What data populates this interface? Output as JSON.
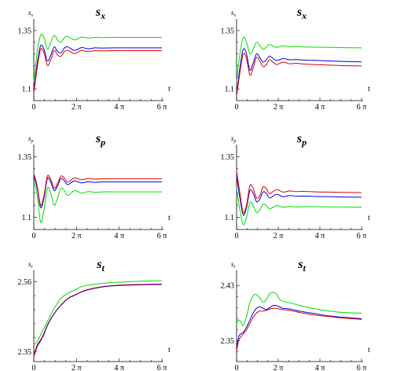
{
  "chart_data": [
    {
      "type": "line",
      "title": "s_x",
      "title_main": "s",
      "title_sub": "x",
      "ylabel_main": "s",
      "ylabel_sub": "x",
      "xlabel": "t",
      "xlim": [
        0,
        18.85
      ],
      "ylim": [
        1.05,
        1.38
      ],
      "x_ticks": [
        {
          "v": 0,
          "label": "0"
        },
        {
          "v": 6.2832,
          "label": "2 π"
        },
        {
          "v": 12.566,
          "label": "4 π"
        },
        {
          "v": 18.85,
          "label": "6 π"
        }
      ],
      "y_ticks": [
        {
          "v": 1.1,
          "label": "1.1"
        },
        {
          "v": 1.35,
          "label": "1.35"
        }
      ],
      "series": [
        {
          "color": "#00dd00",
          "x": [
            0,
            0.5,
            1,
            1.5,
            2,
            2.5,
            3,
            3.5,
            4,
            4.5,
            5,
            6,
            7,
            8,
            9,
            10,
            12,
            14,
            16,
            18.85
          ],
          "y": [
            1.13,
            1.26,
            1.33,
            1.32,
            1.27,
            1.3,
            1.33,
            1.31,
            1.3,
            1.32,
            1.325,
            1.31,
            1.322,
            1.318,
            1.321,
            1.32,
            1.321,
            1.321,
            1.321,
            1.321
          ]
        },
        {
          "color": "#0000dd",
          "x": [
            0,
            0.5,
            1,
            1.5,
            2,
            2.5,
            3,
            3.5,
            4,
            4.5,
            5,
            6,
            7,
            8,
            9,
            10,
            12,
            14,
            16,
            18.85
          ],
          "y": [
            1.09,
            1.21,
            1.285,
            1.27,
            1.22,
            1.245,
            1.28,
            1.26,
            1.255,
            1.275,
            1.28,
            1.265,
            1.277,
            1.272,
            1.276,
            1.275,
            1.276,
            1.276,
            1.276,
            1.276
          ]
        },
        {
          "color": "#dd0000",
          "x": [
            0,
            0.5,
            1,
            1.5,
            2,
            2.5,
            3,
            3.5,
            4,
            4.5,
            5,
            6,
            7,
            8,
            9,
            10,
            12,
            14,
            16,
            18.85
          ],
          "y": [
            1.08,
            1.19,
            1.27,
            1.255,
            1.2,
            1.225,
            1.265,
            1.245,
            1.24,
            1.26,
            1.265,
            1.252,
            1.265,
            1.26,
            1.264,
            1.263,
            1.264,
            1.264,
            1.264,
            1.264
          ]
        }
      ]
    },
    {
      "type": "line",
      "title": "s_x",
      "title_main": "s",
      "title_sub": "x",
      "ylabel_main": "s",
      "ylabel_sub": "x",
      "xlabel": "t",
      "xlim": [
        0,
        18.85
      ],
      "ylim": [
        1.05,
        1.38
      ],
      "x_ticks": [
        {
          "v": 0,
          "label": "0"
        },
        {
          "v": 6.2832,
          "label": "2 π"
        },
        {
          "v": 12.566,
          "label": "4 π"
        },
        {
          "v": 18.85,
          "label": "6 π"
        }
      ],
      "y_ticks": [
        {
          "v": 1.1,
          "label": "1.1"
        },
        {
          "v": 1.35,
          "label": "1.35"
        }
      ],
      "series": [
        {
          "color": "#00dd00",
          "x": [
            0,
            0.5,
            1,
            1.5,
            2,
            2.5,
            3,
            3.5,
            4,
            4.5,
            5,
            6,
            7,
            8,
            9,
            10,
            12,
            14,
            16,
            18.85
          ],
          "y": [
            1.13,
            1.25,
            1.32,
            1.3,
            1.25,
            1.27,
            1.3,
            1.285,
            1.27,
            1.28,
            1.29,
            1.278,
            1.285,
            1.28,
            1.282,
            1.28,
            1.279,
            1.278,
            1.277,
            1.276
          ]
        },
        {
          "color": "#0000dd",
          "x": [
            0,
            0.5,
            1,
            1.5,
            2,
            2.5,
            3,
            3.5,
            4,
            4.5,
            5,
            6,
            7,
            8,
            9,
            10,
            12,
            14,
            16,
            18.85
          ],
          "y": [
            1.08,
            1.19,
            1.27,
            1.25,
            1.18,
            1.21,
            1.25,
            1.235,
            1.215,
            1.225,
            1.24,
            1.222,
            1.23,
            1.225,
            1.226,
            1.224,
            1.222,
            1.22,
            1.218,
            1.216
          ]
        },
        {
          "color": "#dd0000",
          "x": [
            0,
            0.5,
            1,
            1.5,
            2,
            2.5,
            3,
            3.5,
            4,
            4.5,
            5,
            6,
            7,
            8,
            9,
            10,
            12,
            14,
            16,
            18.85
          ],
          "y": [
            1.07,
            1.17,
            1.25,
            1.23,
            1.16,
            1.19,
            1.235,
            1.22,
            1.195,
            1.205,
            1.225,
            1.205,
            1.215,
            1.208,
            1.21,
            1.207,
            1.204,
            1.202,
            1.2,
            1.198
          ]
        }
      ]
    },
    {
      "type": "line",
      "title": "s_p",
      "title_main": "s",
      "title_sub": "p",
      "ylabel_main": "s",
      "ylabel_sub": "p",
      "xlabel": "t",
      "xlim": [
        0,
        18.85
      ],
      "ylim": [
        1.05,
        1.38
      ],
      "x_ticks": [
        {
          "v": 0,
          "label": "0"
        },
        {
          "v": 6.2832,
          "label": "2 π"
        },
        {
          "v": 12.566,
          "label": "4 π"
        },
        {
          "v": 18.85,
          "label": "6 π"
        }
      ],
      "y_ticks": [
        {
          "v": 1.1,
          "label": "1.1"
        },
        {
          "v": 1.35,
          "label": "1.35"
        }
      ],
      "series": [
        {
          "color": "#00dd00",
          "x": [
            0,
            0.5,
            1,
            1.5,
            2,
            2.5,
            3,
            3.5,
            4,
            4.5,
            5,
            6,
            7,
            8,
            9,
            10,
            12,
            14,
            16,
            18.85
          ],
          "y": [
            1.25,
            1.19,
            1.08,
            1.13,
            1.22,
            1.2,
            1.15,
            1.18,
            1.22,
            1.21,
            1.19,
            1.21,
            1.2,
            1.206,
            1.203,
            1.205,
            1.205,
            1.205,
            1.205,
            1.205
          ]
        },
        {
          "color": "#0000dd",
          "x": [
            0,
            0.5,
            1,
            1.5,
            2,
            2.5,
            3,
            3.5,
            4,
            4.5,
            5,
            6,
            7,
            8,
            9,
            10,
            12,
            14,
            16,
            18.85
          ],
          "y": [
            1.27,
            1.22,
            1.14,
            1.18,
            1.26,
            1.245,
            1.21,
            1.23,
            1.26,
            1.25,
            1.235,
            1.25,
            1.242,
            1.247,
            1.244,
            1.246,
            1.246,
            1.246,
            1.246,
            1.246
          ]
        },
        {
          "color": "#dd0000",
          "x": [
            0,
            0.5,
            1,
            1.5,
            2,
            2.5,
            3,
            3.5,
            4,
            4.5,
            5,
            6,
            7,
            8,
            9,
            10,
            12,
            14,
            16,
            18.85
          ],
          "y": [
            1.28,
            1.23,
            1.15,
            1.19,
            1.27,
            1.255,
            1.22,
            1.24,
            1.27,
            1.262,
            1.245,
            1.262,
            1.255,
            1.26,
            1.257,
            1.259,
            1.259,
            1.259,
            1.259,
            1.259
          ]
        }
      ]
    },
    {
      "type": "line",
      "title": "s_p",
      "title_main": "s",
      "title_sub": "p",
      "ylabel_main": "s",
      "ylabel_sub": "p",
      "xlabel": "t",
      "xlim": [
        0,
        18.85
      ],
      "ylim": [
        1.05,
        1.38
      ],
      "x_ticks": [
        {
          "v": 0,
          "label": "0"
        },
        {
          "v": 6.2832,
          "label": "2 π"
        },
        {
          "v": 12.566,
          "label": "4 π"
        },
        {
          "v": 18.85,
          "label": "6 π"
        }
      ],
      "y_ticks": [
        {
          "v": 1.1,
          "label": "1.1"
        },
        {
          "v": 1.35,
          "label": "1.35"
        }
      ],
      "series": [
        {
          "color": "#00dd00",
          "x": [
            0,
            0.5,
            1,
            1.5,
            2,
            2.5,
            3,
            3.5,
            4,
            4.5,
            5,
            6,
            7,
            8,
            9,
            10,
            12,
            14,
            16,
            18.85
          ],
          "y": [
            1.22,
            1.13,
            1.07,
            1.1,
            1.16,
            1.15,
            1.12,
            1.13,
            1.155,
            1.148,
            1.135,
            1.148,
            1.142,
            1.145,
            1.143,
            1.144,
            1.144,
            1.143,
            1.143,
            1.142
          ]
        },
        {
          "color": "#0000dd",
          "x": [
            0,
            0.5,
            1,
            1.5,
            2,
            2.5,
            3,
            3.5,
            4,
            4.5,
            5,
            6,
            7,
            8,
            9,
            10,
            12,
            14,
            16,
            18.85
          ],
          "y": [
            1.27,
            1.18,
            1.11,
            1.14,
            1.21,
            1.2,
            1.165,
            1.175,
            1.205,
            1.198,
            1.18,
            1.195,
            1.185,
            1.19,
            1.187,
            1.188,
            1.186,
            1.185,
            1.184,
            1.183
          ]
        },
        {
          "color": "#dd0000",
          "x": [
            0,
            0.5,
            1,
            1.5,
            2,
            2.5,
            3,
            3.5,
            4,
            4.5,
            5,
            6,
            7,
            8,
            9,
            10,
            12,
            14,
            16,
            18.85
          ],
          "y": [
            1.29,
            1.2,
            1.12,
            1.15,
            1.23,
            1.22,
            1.18,
            1.19,
            1.225,
            1.218,
            1.198,
            1.214,
            1.204,
            1.209,
            1.206,
            1.207,
            1.205,
            1.204,
            1.203,
            1.202
          ]
        }
      ]
    },
    {
      "type": "line",
      "title": "s_t",
      "title_main": "s",
      "title_sub": "t",
      "ylabel_main": "s",
      "ylabel_sub": "t",
      "xlabel": "t",
      "xlim": [
        0,
        18.85
      ],
      "ylim": [
        2.32,
        2.58
      ],
      "x_ticks": [
        {
          "v": 0,
          "label": "0"
        },
        {
          "v": 6.2832,
          "label": "2 π"
        },
        {
          "v": 12.566,
          "label": "4 π"
        },
        {
          "v": 18.85,
          "label": "6 π"
        }
      ],
      "y_ticks": [
        {
          "v": 2.35,
          "label": "2.35"
        },
        {
          "v": 2.56,
          "label": "2.56"
        }
      ],
      "series": [
        {
          "color": "#00dd00",
          "x": [
            0,
            0.5,
            1,
            1.5,
            2,
            3,
            4,
            5,
            6,
            7,
            8,
            10,
            12,
            14,
            16,
            18.85
          ],
          "y": [
            2.37,
            2.38,
            2.4,
            2.42,
            2.44,
            2.48,
            2.51,
            2.525,
            2.535,
            2.545,
            2.55,
            2.555,
            2.558,
            2.56,
            2.562,
            2.563
          ]
        },
        {
          "color": "#dd0000",
          "x": [
            0,
            0.5,
            1,
            1.5,
            2,
            3,
            4,
            5,
            6,
            7,
            8,
            10,
            12,
            14,
            16,
            18.85
          ],
          "y": [
            2.34,
            2.37,
            2.385,
            2.405,
            2.43,
            2.465,
            2.49,
            2.51,
            2.52,
            2.53,
            2.537,
            2.545,
            2.549,
            2.551,
            2.552,
            2.553
          ]
        },
        {
          "color": "#4400aa",
          "x": [
            0,
            0.5,
            1,
            1.5,
            2,
            3,
            4,
            5,
            6,
            7,
            8,
            10,
            12,
            14,
            16,
            18.85
          ],
          "y": [
            2.335,
            2.365,
            2.382,
            2.402,
            2.428,
            2.464,
            2.489,
            2.509,
            2.519,
            2.529,
            2.536,
            2.544,
            2.548,
            2.55,
            2.551,
            2.552
          ]
        }
      ]
    },
    {
      "type": "line",
      "title": "s_t",
      "title_main": "s",
      "title_sub": "t",
      "ylabel_main": "s",
      "ylabel_sub": "t",
      "xlabel": "t",
      "xlim": [
        0,
        18.85
      ],
      "ylim": [
        2.32,
        2.445
      ],
      "x_ticks": [
        {
          "v": 0,
          "label": "0"
        },
        {
          "v": 6.2832,
          "label": "2 π"
        },
        {
          "v": 12.566,
          "label": "4 π"
        },
        {
          "v": 18.85,
          "label": "6 π"
        }
      ],
      "y_ticks": [
        {
          "v": 2.35,
          "label": "2.35"
        },
        {
          "v": 2.43,
          "label": "2.43"
        }
      ],
      "series": [
        {
          "color": "#00dd00",
          "x": [
            0,
            0.3,
            0.6,
            1,
            1.5,
            2,
            2.5,
            3,
            3.5,
            4,
            4.5,
            5,
            5.5,
            6,
            6.5,
            7,
            8,
            10,
            12,
            14,
            16,
            18.85
          ],
          "y": [
            2.375,
            2.38,
            2.378,
            2.372,
            2.385,
            2.405,
            2.415,
            2.417,
            2.412,
            2.406,
            2.41,
            2.418,
            2.42,
            2.418,
            2.41,
            2.407,
            2.405,
            2.4,
            2.396,
            2.393,
            2.391,
            2.39
          ]
        },
        {
          "color": "#0000dd",
          "x": [
            0,
            0.3,
            0.6,
            1,
            1.5,
            2,
            2.5,
            3,
            3.5,
            4,
            4.5,
            5,
            5.5,
            6,
            6.5,
            7,
            8,
            10,
            12,
            14,
            16,
            18.85
          ],
          "y": [
            2.34,
            2.355,
            2.36,
            2.362,
            2.37,
            2.38,
            2.39,
            2.397,
            2.399,
            2.397,
            2.395,
            2.398,
            2.401,
            2.401,
            2.399,
            2.397,
            2.396,
            2.392,
            2.389,
            2.386,
            2.384,
            2.382
          ]
        },
        {
          "color": "#dd0000",
          "x": [
            0,
            0.3,
            0.6,
            1,
            1.5,
            2,
            2.5,
            3,
            3.5,
            4,
            4.5,
            5,
            5.5,
            6,
            6.5,
            7,
            8,
            10,
            12,
            14,
            16,
            18.85
          ],
          "y": [
            2.335,
            2.35,
            2.355,
            2.36,
            2.366,
            2.375,
            2.384,
            2.39,
            2.393,
            2.393,
            2.394,
            2.396,
            2.397,
            2.397,
            2.396,
            2.395,
            2.394,
            2.39,
            2.387,
            2.385,
            2.383,
            2.381
          ]
        }
      ]
    }
  ]
}
